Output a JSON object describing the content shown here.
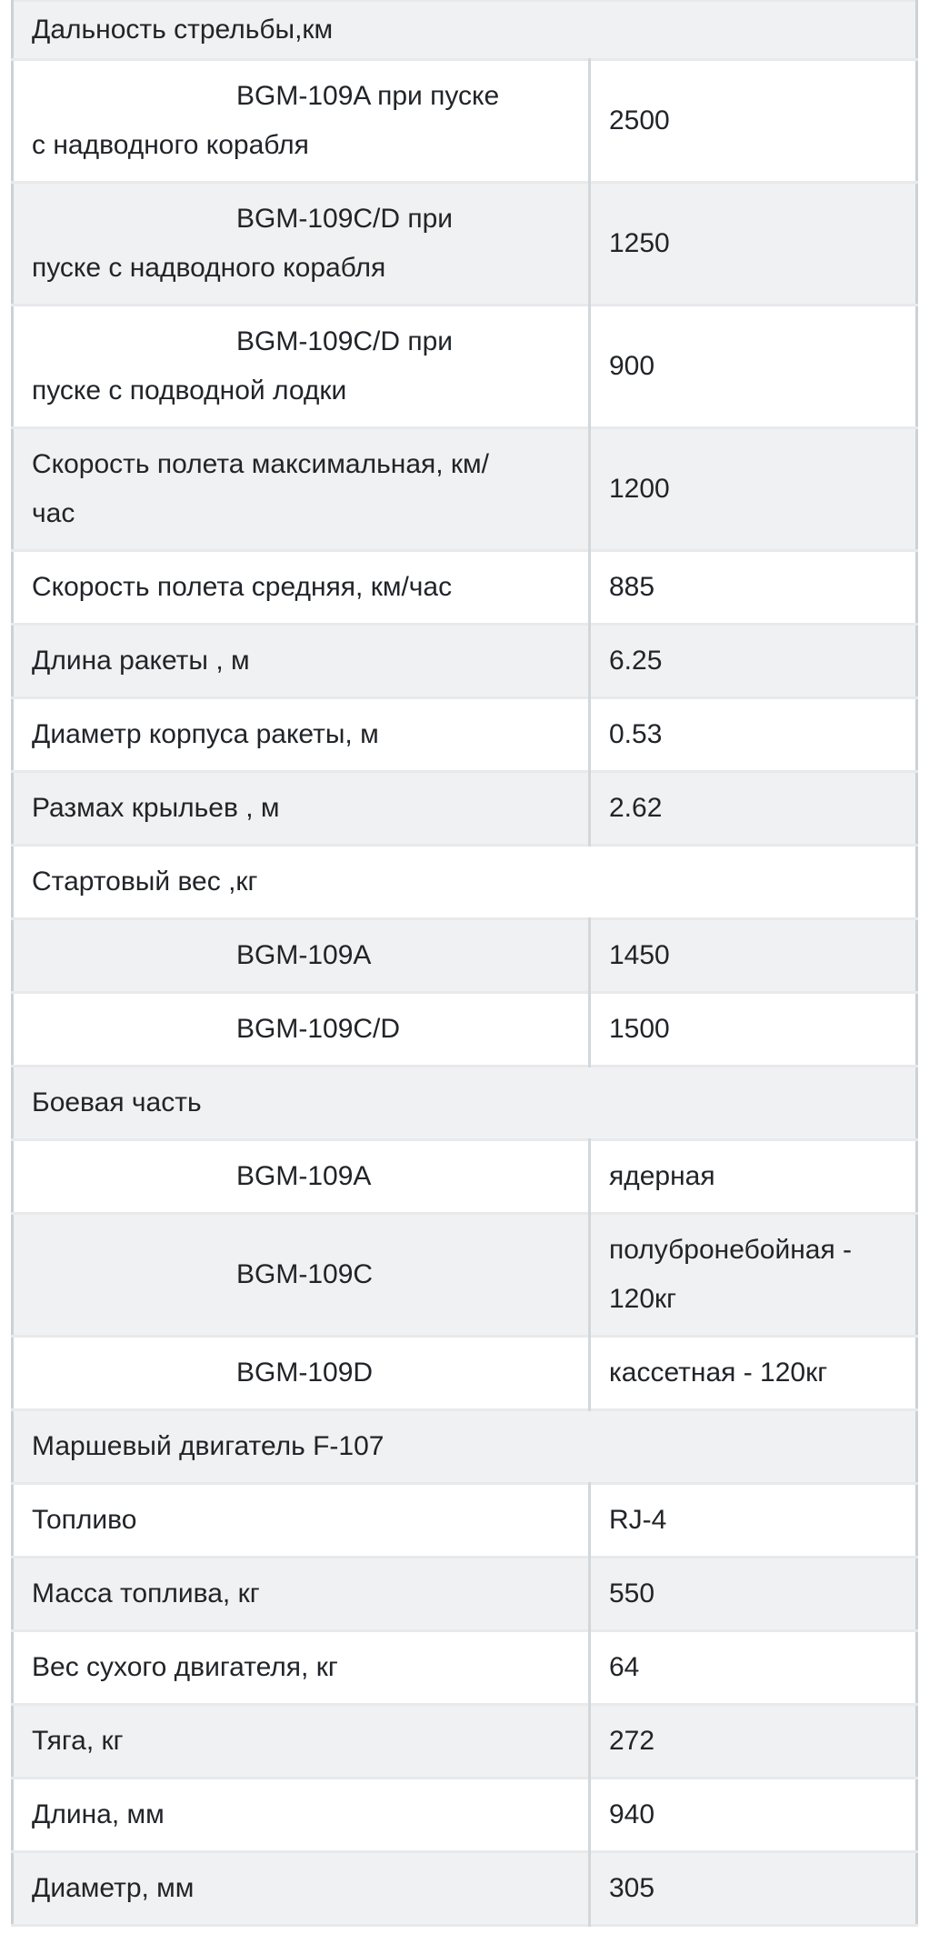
{
  "colors": {
    "page_background": "#ffffff",
    "stripe_row_background": "#f0f1f2",
    "white_row_background": "#ffffff",
    "horizontal_border": "#e7e9eb",
    "vertical_border": "#cdd1d5",
    "text": "#212428"
  },
  "table": {
    "rows": [
      {
        "type": "section",
        "label": "Дальность стрельбы,км"
      },
      {
        "type": "pair",
        "indent": true,
        "label": "BGM-109A при пуске с надводного корабля",
        "value": "2500"
      },
      {
        "type": "pair",
        "indent": true,
        "label": "BGM-109C/D при пуске с надводного корабля",
        "value": "1250"
      },
      {
        "type": "pair",
        "indent": true,
        "label": "BGM-109C/D при пуске с подводной лодки",
        "value": "900"
      },
      {
        "type": "pair",
        "indent": false,
        "label": "Скорость полета максимальная, км/час",
        "value": "1200"
      },
      {
        "type": "pair",
        "indent": false,
        "label": "Скорость полета средняя, км/час",
        "value": "885"
      },
      {
        "type": "pair",
        "indent": false,
        "label": "Длина ракеты , м",
        "value": "6.25"
      },
      {
        "type": "pair",
        "indent": false,
        "label": "Диаметр корпуса ракеты, м",
        "value": "0.53"
      },
      {
        "type": "pair",
        "indent": false,
        "label": "Размах крыльев , м",
        "value": "2.62"
      },
      {
        "type": "section",
        "label": "Стартовый вес ,кг"
      },
      {
        "type": "pair",
        "indent": true,
        "label": "BGM-109A",
        "value": "1450"
      },
      {
        "type": "pair",
        "indent": true,
        "label": "BGM-109C/D",
        "value": "1500"
      },
      {
        "type": "section",
        "label": "Боевая часть"
      },
      {
        "type": "pair",
        "indent": true,
        "label": "BGM-109A",
        "value": "ядерная"
      },
      {
        "type": "pair",
        "indent": true,
        "label": "BGM-109C",
        "value": "полубронебойная - 120кг"
      },
      {
        "type": "pair",
        "indent": true,
        "label": "BGM-109D",
        "value": "кассетная - 120кг"
      },
      {
        "type": "section",
        "label": "Маршевый двигатель F-107"
      },
      {
        "type": "pair",
        "indent": false,
        "label": "Топливо",
        "value": "RJ-4"
      },
      {
        "type": "pair",
        "indent": false,
        "label": "Масса топлива, кг",
        "value": "550"
      },
      {
        "type": "pair",
        "indent": false,
        "label": "Вес сухого двигателя, кг",
        "value": "64"
      },
      {
        "type": "pair",
        "indent": false,
        "label": "Тяга, кг",
        "value": "272"
      },
      {
        "type": "pair",
        "indent": false,
        "label": "Длина, мм",
        "value": "940"
      },
      {
        "type": "pair",
        "indent": false,
        "label": "Диаметр, мм",
        "value": "305"
      }
    ]
  }
}
